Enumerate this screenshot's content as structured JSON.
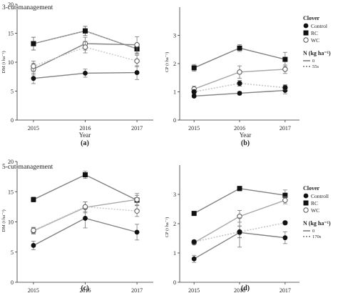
{
  "chart_data": [
    {
      "type": "line",
      "panel_title": "3-cut-management",
      "caption": "(a)",
      "xlabel": "Year",
      "ylabel": "DM (t ha⁻¹)",
      "x": [
        "2015",
        "2016",
        "2017"
      ],
      "ylim": [
        0,
        20
      ],
      "yticks": [
        0,
        5,
        10,
        15,
        20
      ],
      "grid": false,
      "series": [
        {
          "name": "RC",
          "nitrogen": "0",
          "marker": "square",
          "color": "#808080",
          "values": [
            13.2,
            15.4,
            12.3
          ],
          "err": [
            1.1,
            0.8,
            0.9
          ]
        },
        {
          "name": "RC",
          "nitrogen": "55s",
          "marker": "square",
          "color": "#a8a8a8",
          "values": [
            13.2,
            15.4,
            12.3
          ],
          "err": [
            1.1,
            0.8,
            0.9
          ]
        },
        {
          "name": "WC",
          "nitrogen": "0",
          "marker": "open-circle",
          "color": "#808080",
          "values": [
            8.8,
            13.2,
            13.0
          ],
          "err": [
            1.0,
            1.1,
            1.4
          ]
        },
        {
          "name": "WC",
          "nitrogen": "55s",
          "marker": "open-circle",
          "color": "#c8c8c8",
          "values": [
            9.3,
            12.6,
            10.2
          ],
          "err": [
            0.9,
            1.0,
            1.0
          ]
        },
        {
          "name": "Control",
          "nitrogen": "0",
          "marker": "dot",
          "color": "#808080",
          "values": [
            7.2,
            8.1,
            8.2
          ],
          "err": [
            0.9,
            0.7,
            1.2
          ]
        }
      ]
    },
    {
      "type": "line",
      "caption": "(b)",
      "xlabel": "Year",
      "ylabel": "CP (t ha⁻¹)",
      "x": [
        "2015",
        "2016",
        "2017"
      ],
      "ylim": [
        0,
        4
      ],
      "yticks": [
        0,
        1,
        2,
        3
      ],
      "grid": false,
      "legend": {
        "title": "Clover",
        "items": [
          "Control",
          "RC",
          "WC"
        ],
        "n_title": "N (kg ha⁻¹)",
        "n_items": [
          "0",
          "55s"
        ],
        "placement": "right"
      },
      "series": [
        {
          "name": "RC",
          "nitrogen": "0",
          "marker": "square",
          "color": "#808080",
          "values": [
            1.85,
            2.55,
            2.15
          ],
          "err": [
            0.12,
            0.12,
            0.25
          ]
        },
        {
          "name": "WC",
          "nitrogen": "0",
          "marker": "open-circle",
          "color": "#a8a8a8",
          "values": [
            1.1,
            1.7,
            1.8
          ],
          "err": [
            0.1,
            0.22,
            0.15
          ]
        },
        {
          "name": "WC",
          "nitrogen": "55s",
          "marker": "open-circle",
          "color": "#c8c8c8",
          "values": [
            1.0,
            1.3,
            1.15
          ],
          "err": [
            0.08,
            0.1,
            0.1
          ]
        },
        {
          "name": "Control",
          "nitrogen": "0",
          "marker": "dot",
          "color": "#808080",
          "values": [
            0.85,
            0.95,
            1.05
          ],
          "err": [
            0.05,
            0.06,
            0.12
          ]
        },
        {
          "name": "Control",
          "nitrogen": "55s",
          "marker": "dot",
          "color": "#c8c8c8",
          "values": [
            1.0,
            1.3,
            1.15
          ],
          "err": [
            0.06,
            0.1,
            0.08
          ]
        }
      ]
    },
    {
      "type": "line",
      "panel_title": "5-cut-management",
      "caption": "(c)",
      "xlabel": "",
      "ylabel": "DM (t ha⁻¹)",
      "x": [
        "2015",
        "2016",
        "2017"
      ],
      "ylim": [
        0,
        20
      ],
      "yticks": [
        0,
        5,
        10,
        15,
        20
      ],
      "grid": false,
      "series": [
        {
          "name": "RC",
          "nitrogen": "0",
          "marker": "square",
          "color": "#808080",
          "values": [
            13.7,
            17.8,
            13.6
          ],
          "err": [
            0.4,
            0.6,
            0.8
          ]
        },
        {
          "name": "WC",
          "nitrogen": "0",
          "marker": "open-circle",
          "color": "#a8a8a8",
          "values": [
            8.5,
            12.4,
            13.7
          ],
          "err": [
            0.5,
            0.9,
            1.0
          ]
        },
        {
          "name": "WC",
          "nitrogen": "170s",
          "marker": "open-circle",
          "color": "#c8c8c8",
          "values": [
            8.6,
            12.5,
            11.8
          ],
          "err": [
            0.5,
            0.8,
            0.9
          ]
        },
        {
          "name": "Control",
          "nitrogen": "0",
          "marker": "dot",
          "color": "#808080",
          "values": [
            6.1,
            10.6,
            8.3
          ],
          "err": [
            0.7,
            1.6,
            1.3
          ]
        }
      ]
    },
    {
      "type": "line",
      "caption": "(d)",
      "xlabel": "",
      "ylabel": "CP (t ha⁻¹)",
      "x": [
        "2015",
        "2016",
        "2017"
      ],
      "ylim": [
        0,
        4
      ],
      "yticks": [
        0,
        1,
        2,
        3
      ],
      "grid": false,
      "legend": {
        "title": "Clover",
        "items": [
          "Controll",
          "RC",
          "WC"
        ],
        "n_title": "N (kg ha⁻¹)",
        "n_items": [
          "0",
          "170s"
        ],
        "placement": "right"
      },
      "series": [
        {
          "name": "RC",
          "nitrogen": "0",
          "marker": "square",
          "color": "#808080",
          "values": [
            2.35,
            3.2,
            2.97
          ],
          "err": [
            0.05,
            0.08,
            0.18
          ]
        },
        {
          "name": "WC",
          "nitrogen": "0",
          "marker": "open-circle",
          "color": "#a8a8a8",
          "values": [
            1.35,
            2.25,
            2.8
          ],
          "err": [
            0.05,
            0.2,
            0.12
          ]
        },
        {
          "name": "WC",
          "nitrogen": "170s",
          "marker": "open-circle",
          "color": "#c8c8c8",
          "values": [
            1.38,
            1.72,
            2.03
          ],
          "err": [
            0.06,
            0.2,
            0.06
          ]
        },
        {
          "name": "Control",
          "nitrogen": "0",
          "marker": "dot",
          "color": "#808080",
          "values": [
            0.8,
            1.7,
            1.52
          ],
          "err": [
            0.12,
            0.5,
            0.2
          ]
        },
        {
          "name": "Control",
          "nitrogen": "170s",
          "marker": "dot",
          "color": "#c8c8c8",
          "values": [
            1.38,
            1.72,
            2.03
          ],
          "err": [
            0.06,
            0.2,
            0.06
          ]
        }
      ]
    }
  ]
}
